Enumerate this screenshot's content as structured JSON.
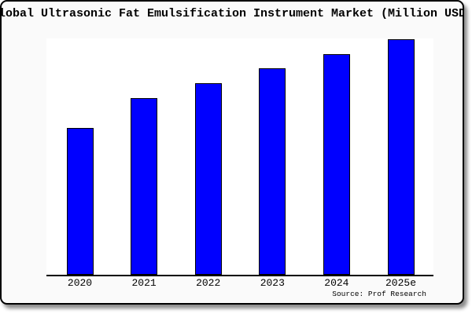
{
  "colors": {
    "card_background": "#fafafa",
    "plot_background": "#ffffff",
    "card_border": "#000000",
    "axis_line": "#000000",
    "text": "#000000"
  },
  "chart_data": {
    "type": "bar",
    "title": "Global Ultrasonic Fat Emulsification Instrument Market (Million USD)",
    "categories": [
      "2020",
      "2021",
      "2022",
      "2023",
      "2024",
      "2025e"
    ],
    "values": [
      62.3,
      75.0,
      81.3,
      87.8,
      93.7,
      100.0
    ],
    "values_note": "No y-axis tick labels are visible in the chart; values are bar heights relative to the tallest bar (2025e = 100)",
    "xlabel": "",
    "ylabel": "",
    "ylim": [
      0,
      100.3
    ],
    "grid": false,
    "legend": null,
    "y_axis_visible": false,
    "bar_color": "#0000ff",
    "bar_edge_color": "#000000",
    "source_label": "Source: Prof Research"
  }
}
